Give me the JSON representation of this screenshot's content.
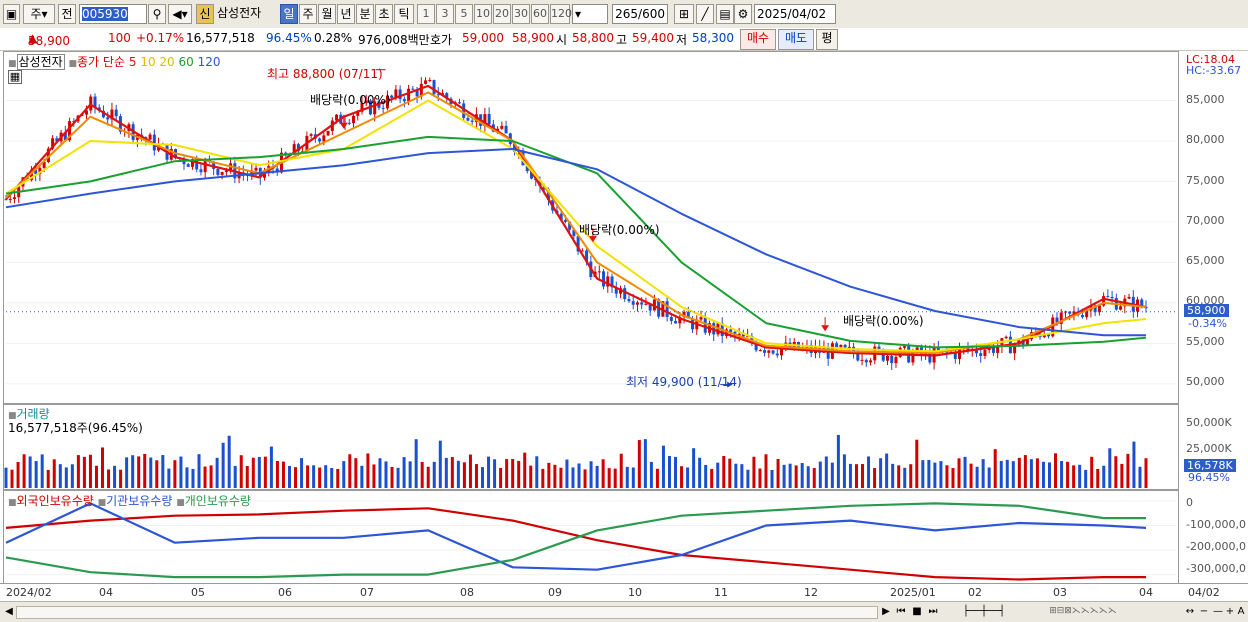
{
  "toolbar": {
    "market_code": "주",
    "prev_label": "전",
    "code_value": "005930",
    "stock_name": "삼성전자",
    "sin_label": "신",
    "periods": [
      "일",
      "주",
      "월",
      "년",
      "분",
      "초",
      "틱"
    ],
    "active_period": "일",
    "intervals": [
      "1",
      "3",
      "5",
      "10",
      "20",
      "30",
      "60",
      "120"
    ],
    "count_value": "265",
    "count_total": "/600",
    "date_value": "2025/04/02"
  },
  "quote": {
    "price": "58,900",
    "change": "100",
    "change_pct": "+0.17%",
    "volume": "16,577,518",
    "vol_ratio": "96.45%",
    "turnover": "0.28%",
    "amount": "976,008백만",
    "hoga_label": "호가",
    "ask": "59,000",
    "bid": "58,900",
    "open_label": "시",
    "open": "58,800",
    "high_label": "고",
    "high": "59,400",
    "low_label": "저",
    "low": "58,300",
    "buy_label": "매수",
    "sell_label": "매도",
    "eval_label": "평"
  },
  "price_panel": {
    "legend_name": "삼성전자",
    "legend_prefix": "종가 단순",
    "ma_periods": [
      "5",
      "10",
      "20",
      "60",
      "120"
    ],
    "lc_label": "LC:18.04",
    "hc_label": "HC:-33.67",
    "axis_labels": [
      "85,000",
      "80,000",
      "75,000",
      "70,000",
      "65,000",
      "60,000",
      "55,000",
      "50,000"
    ],
    "last_price_tag": "58,900",
    "last_pct_tag": "-0.34%",
    "annotation_high": "최고 88,800 (07/11)",
    "annotation_low": "최저 49,900 (11/14)",
    "dividend_label": "배당락(0.00%)"
  },
  "volume_panel": {
    "legend_name": "거래량",
    "volume_label": "16,577,518주(96.45%)",
    "axis_labels": [
      "50,000K",
      "25,000K"
    ],
    "last_tag": "16,578K",
    "last_pct": "96.45%"
  },
  "holding_panel": {
    "legend": [
      "외국인보유수량",
      "기관보유수량",
      "개인보유수량"
    ],
    "axis_labels": [
      "0",
      "-100,000,0",
      "-200,000,0",
      "-300,000,0"
    ]
  },
  "x_axis": {
    "labels": [
      "2024/02",
      "04",
      "05",
      "06",
      "07",
      "08",
      "09",
      "10",
      "11",
      "12",
      "2025/01",
      "02",
      "03",
      "04"
    ],
    "right_label": "04/02"
  },
  "colors": {
    "up": "#d00000",
    "down": "#1a4fd0",
    "ma5": "#e01010",
    "ma10": "#f08a00",
    "ma20": "#f2e200",
    "ma60": "#18a030",
    "ma120": "#2c55d8",
    "foreign": "#d00000",
    "institution": "#2c55d8",
    "individual": "#2a9a50"
  },
  "chart_data": {
    "type": "line",
    "title": "",
    "x": [
      "2024/02",
      "04",
      "05",
      "06",
      "07",
      "08",
      "09",
      "10",
      "11",
      "12",
      "2025/01",
      "02",
      "03",
      "04"
    ],
    "series": [
      {
        "name": "5",
        "points": [
          [
            0,
            72800
          ],
          [
            1,
            84500
          ],
          [
            2,
            78000
          ],
          [
            3,
            75500
          ],
          [
            4,
            83000
          ],
          [
            5,
            86800
          ],
          [
            6,
            80000
          ],
          [
            7,
            63000
          ],
          [
            8,
            58000
          ],
          [
            9,
            54500
          ],
          [
            10,
            53800
          ],
          [
            11,
            53500
          ],
          [
            12,
            55000
          ],
          [
            13,
            60500
          ],
          [
            13.5,
            59500
          ]
        ]
      },
      {
        "name": "10",
        "points": [
          [
            0,
            73000
          ],
          [
            1,
            83000
          ],
          [
            2,
            78500
          ],
          [
            3,
            76000
          ],
          [
            4,
            81000
          ],
          [
            5,
            86000
          ],
          [
            6,
            80000
          ],
          [
            7,
            65000
          ],
          [
            8,
            58500
          ],
          [
            9,
            54700
          ],
          [
            10,
            54000
          ],
          [
            11,
            53800
          ],
          [
            12,
            55500
          ],
          [
            13,
            60000
          ],
          [
            13.5,
            59500
          ]
        ]
      },
      {
        "name": "20",
        "points": [
          [
            0,
            73500
          ],
          [
            1,
            80000
          ],
          [
            2,
            79500
          ],
          [
            3,
            77000
          ],
          [
            4,
            79000
          ],
          [
            5,
            85000
          ],
          [
            6,
            79000
          ],
          [
            7,
            67000
          ],
          [
            8,
            59500
          ],
          [
            9,
            55000
          ],
          [
            10,
            54300
          ],
          [
            11,
            54000
          ],
          [
            12,
            55500
          ],
          [
            13,
            57500
          ],
          [
            13.5,
            58000
          ]
        ]
      },
      {
        "name": "60",
        "points": [
          [
            0,
            73500
          ],
          [
            1,
            75000
          ],
          [
            2,
            77500
          ],
          [
            3,
            78000
          ],
          [
            4,
            79000
          ],
          [
            5,
            80500
          ],
          [
            6,
            80000
          ],
          [
            7,
            76000
          ],
          [
            8,
            65000
          ],
          [
            9,
            57500
          ],
          [
            10,
            55300
          ],
          [
            11,
            54500
          ],
          [
            12,
            54700
          ],
          [
            13,
            55200
          ],
          [
            13.5,
            55700
          ]
        ]
      },
      {
        "name": "120",
        "points": [
          [
            0,
            71800
          ],
          [
            1,
            73500
          ],
          [
            2,
            75000
          ],
          [
            3,
            76000
          ],
          [
            4,
            77000
          ],
          [
            5,
            78500
          ],
          [
            6,
            79000
          ],
          [
            7,
            76500
          ],
          [
            8,
            71000
          ],
          [
            9,
            66000
          ],
          [
            10,
            62000
          ],
          [
            11,
            59000
          ],
          [
            12,
            57000
          ],
          [
            13,
            56000
          ],
          [
            13.5,
            56000
          ]
        ]
      }
    ],
    "ylim": [
      48000,
      90000
    ],
    "high": {
      "value": 88800,
      "date": "07/11"
    },
    "low": {
      "value": 49900,
      "date": "11/14"
    },
    "last": 58900,
    "volume_axis": [
      0,
      60000
    ],
    "holding_axis": [
      -330000,
      20000
    ],
    "holdings": [
      {
        "name": "외국인보유수량",
        "points": [
          [
            0,
            -110000
          ],
          [
            1,
            -80000
          ],
          [
            2,
            -60000
          ],
          [
            3,
            -55000
          ],
          [
            4,
            -40000
          ],
          [
            5,
            -30000
          ],
          [
            6,
            -80000
          ],
          [
            7,
            -160000
          ],
          [
            8,
            -220000
          ],
          [
            9,
            -250000
          ],
          [
            10,
            -280000
          ],
          [
            11,
            -310000
          ],
          [
            12,
            -320000
          ],
          [
            13,
            -310000
          ],
          [
            13.5,
            -310000
          ]
        ]
      },
      {
        "name": "기관보유수량",
        "points": [
          [
            0,
            -170000
          ],
          [
            1,
            -10000
          ],
          [
            2,
            -170000
          ],
          [
            3,
            -150000
          ],
          [
            4,
            -150000
          ],
          [
            5,
            -120000
          ],
          [
            6,
            -270000
          ],
          [
            7,
            -280000
          ],
          [
            8,
            -220000
          ],
          [
            9,
            -100000
          ],
          [
            10,
            -80000
          ],
          [
            11,
            -120000
          ],
          [
            12,
            -90000
          ],
          [
            13,
            -100000
          ],
          [
            13.5,
            -110000
          ]
        ]
      },
      {
        "name": "개인보유수량",
        "points": [
          [
            0,
            -230000
          ],
          [
            1,
            -290000
          ],
          [
            2,
            -310000
          ],
          [
            3,
            -310000
          ],
          [
            4,
            -300000
          ],
          [
            5,
            -300000
          ],
          [
            6,
            -240000
          ],
          [
            7,
            -120000
          ],
          [
            8,
            -60000
          ],
          [
            9,
            -40000
          ],
          [
            10,
            -20000
          ],
          [
            11,
            -10000
          ],
          [
            12,
            -20000
          ],
          [
            13,
            -70000
          ],
          [
            13.5,
            -70000
          ]
        ]
      }
    ]
  }
}
